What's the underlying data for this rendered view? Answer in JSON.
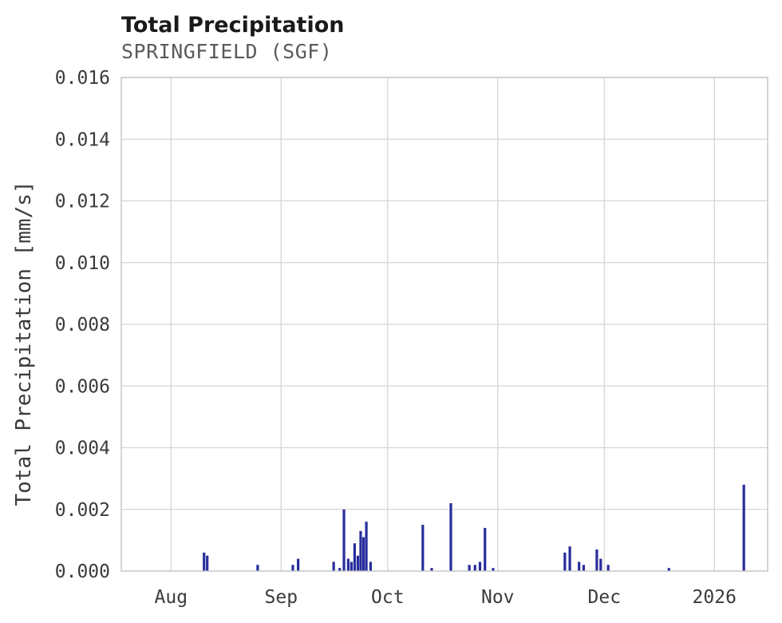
{
  "chart_data": {
    "type": "bar",
    "title": "Total Precipitation",
    "subtitle": "SPRINGFIELD (SGF)",
    "xlabel": "",
    "ylabel": "Total Precipitation [mm/s]",
    "ylim": [
      0,
      0.016
    ],
    "grid": true,
    "legend": "none",
    "bar_color": "#272d9b",
    "grid_color": "#d6d6d6",
    "border_color": "#c3c3c3",
    "bar_width": 3.2,
    "y_ticks": [
      0.0,
      0.002,
      0.004,
      0.006,
      0.008,
      0.01,
      0.012,
      0.014,
      0.016
    ],
    "y_tick_labels": [
      "0.000",
      "0.002",
      "0.004",
      "0.006",
      "0.008",
      "0.010",
      "0.012",
      "0.014",
      "0.016"
    ],
    "x_domain_days": [
      0,
      182
    ],
    "x_ticks": [
      {
        "day": 14,
        "label": "Aug"
      },
      {
        "day": 45,
        "label": "Sep"
      },
      {
        "day": 75,
        "label": "Oct"
      },
      {
        "day": 106,
        "label": "Nov"
      },
      {
        "day": 136,
        "label": "Dec"
      },
      {
        "day": 167,
        "label": "2026"
      }
    ],
    "points": [
      {
        "day": 23.3,
        "value": 0.0006
      },
      {
        "day": 24.2,
        "value": 0.0005
      },
      {
        "day": 38.4,
        "value": 0.0002
      },
      {
        "day": 48.3,
        "value": 0.0002
      },
      {
        "day": 49.8,
        "value": 0.0004
      },
      {
        "day": 59.8,
        "value": 0.0003
      },
      {
        "day": 61.5,
        "value": 0.0001
      },
      {
        "day": 62.7,
        "value": 0.002
      },
      {
        "day": 63.9,
        "value": 0.0004
      },
      {
        "day": 64.8,
        "value": 0.0003
      },
      {
        "day": 65.7,
        "value": 0.0009
      },
      {
        "day": 66.6,
        "value": 0.0005
      },
      {
        "day": 67.4,
        "value": 0.0013
      },
      {
        "day": 68.2,
        "value": 0.0011
      },
      {
        "day": 69.0,
        "value": 0.0016
      },
      {
        "day": 70.2,
        "value": 0.0003
      },
      {
        "day": 84.9,
        "value": 0.0015
      },
      {
        "day": 87.4,
        "value": 0.0001
      },
      {
        "day": 92.8,
        "value": 0.0022
      },
      {
        "day": 98.0,
        "value": 0.0002
      },
      {
        "day": 99.6,
        "value": 0.0002
      },
      {
        "day": 101.0,
        "value": 0.0003
      },
      {
        "day": 102.4,
        "value": 0.0014
      },
      {
        "day": 104.7,
        "value": 0.0001
      },
      {
        "day": 124.9,
        "value": 0.0006
      },
      {
        "day": 126.3,
        "value": 0.0008
      },
      {
        "day": 128.9,
        "value": 0.0003
      },
      {
        "day": 130.2,
        "value": 0.0002
      },
      {
        "day": 133.9,
        "value": 0.0007
      },
      {
        "day": 135.0,
        "value": 0.0004
      },
      {
        "day": 137.1,
        "value": 0.0002
      },
      {
        "day": 154.2,
        "value": 0.0001
      },
      {
        "day": 175.3,
        "value": 0.0028
      }
    ]
  }
}
